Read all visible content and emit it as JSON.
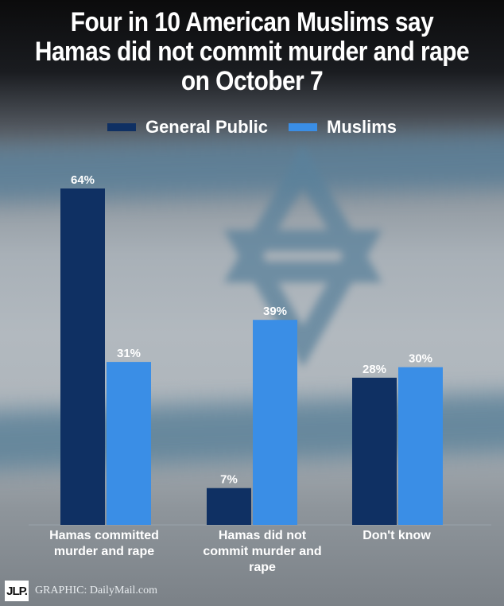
{
  "title": "Four in 10 American Muslims say Hamas did not commit murder and rape on October 7",
  "footer": {
    "logo": "JLP.",
    "credit": "GRAPHIC: DailyMail.com"
  },
  "colors": {
    "general_public": "#0f3063",
    "muslims": "#3a8ee6",
    "text": "#ffffff"
  },
  "chart_data": {
    "type": "bar",
    "title": "Four in 10 American Muslims say Hamas did not commit murder and rape on October 7",
    "categories": [
      "Hamas committed murder and rape",
      "Hamas did not commit murder and rape",
      "Don't know"
    ],
    "series": [
      {
        "name": "General Public",
        "values": [
          64,
          7,
          28
        ],
        "labels": [
          "64%",
          "7%",
          "28%"
        ],
        "color": "#0f3063"
      },
      {
        "name": "Muslims",
        "values": [
          31,
          39,
          30
        ],
        "labels": [
          "31%",
          "39%",
          "30%"
        ],
        "color": "#3a8ee6"
      }
    ],
    "xlabel": "",
    "ylabel": "",
    "ylim": [
      0,
      64
    ],
    "grid": false,
    "legend": "top"
  }
}
